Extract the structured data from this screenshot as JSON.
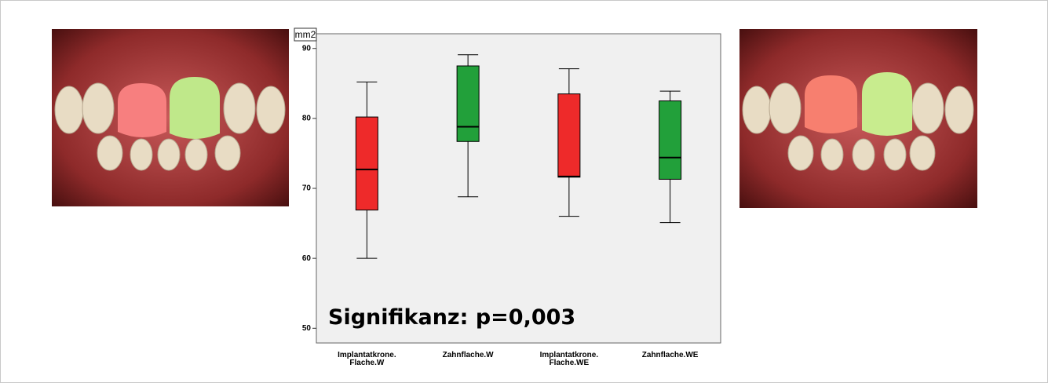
{
  "chart_data": {
    "type": "box",
    "y_label": "mm2",
    "annotation": "Signifikanz: p=0,003",
    "categories": [
      [
        "Implantatkrone.",
        "Flache.W"
      ],
      [
        "Zahnflache.W"
      ],
      [
        "Implantatkrone.",
        "Flache.WE"
      ],
      [
        "Zahnflache.WE"
      ]
    ],
    "boxes": [
      {
        "min": 60,
        "q1": 66.9,
        "median": 72.7,
        "q3": 80.2,
        "max": 85.2,
        "color": "#ee2a2a"
      },
      {
        "min": 68.8,
        "q1": 76.7,
        "median": 78.8,
        "q3": 87.5,
        "max": 89.1,
        "color": "#22a03a"
      },
      {
        "min": 66,
        "q1": 71.6,
        "median": 71.7,
        "q3": 83.5,
        "max": 87.1,
        "color": "#ee2a2a"
      },
      {
        "min": 65.1,
        "q1": 71.3,
        "median": 74.4,
        "q3": 82.5,
        "max": 83.9,
        "color": "#22a03a"
      }
    ],
    "ylim": [
      47.9,
      92.1
    ],
    "yticks": [
      50,
      60,
      70,
      80,
      90
    ]
  }
}
